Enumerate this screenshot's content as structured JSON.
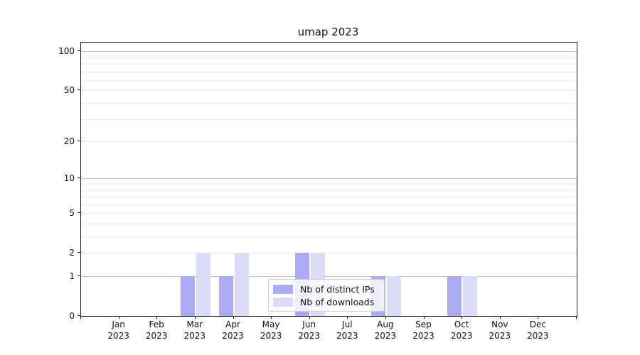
{
  "title": "umap 2023",
  "chart_data": {
    "type": "bar",
    "title": "umap 2023",
    "categories": [
      "Jan",
      "Feb",
      "Mar",
      "Apr",
      "May",
      "Jun",
      "Jul",
      "Aug",
      "Sep",
      "Oct",
      "Nov",
      "Dec"
    ],
    "year_label": "2023",
    "series": [
      {
        "name": "Nb of distinct IPs",
        "color": "#ababf3",
        "values": [
          0,
          0,
          1,
          1,
          0,
          2,
          0,
          1,
          0,
          1,
          0,
          0
        ]
      },
      {
        "name": "Nb of downloads",
        "color": "#dcdcf8",
        "values": [
          0,
          0,
          2,
          2,
          0,
          2,
          0,
          1,
          0,
          1,
          0,
          0
        ]
      }
    ],
    "yscale": "log1p",
    "ylim": [
      0,
      116.5
    ],
    "yticks": [
      0,
      1,
      2,
      5,
      10,
      20,
      50,
      100
    ],
    "grid_major_ticks": [
      1,
      10,
      100
    ],
    "grid_minor_ticks": [
      2,
      3,
      4,
      5,
      6,
      7,
      8,
      9,
      20,
      30,
      40,
      50,
      60,
      70,
      80,
      90
    ],
    "grid": true,
    "legend_position": "lower-center",
    "colors": {
      "grid_major": "#c3c3c3",
      "grid_minor": "#e9e9e9",
      "axis": "#1a1a1a",
      "text": "#111111",
      "legend_border": "#cccccc"
    }
  }
}
